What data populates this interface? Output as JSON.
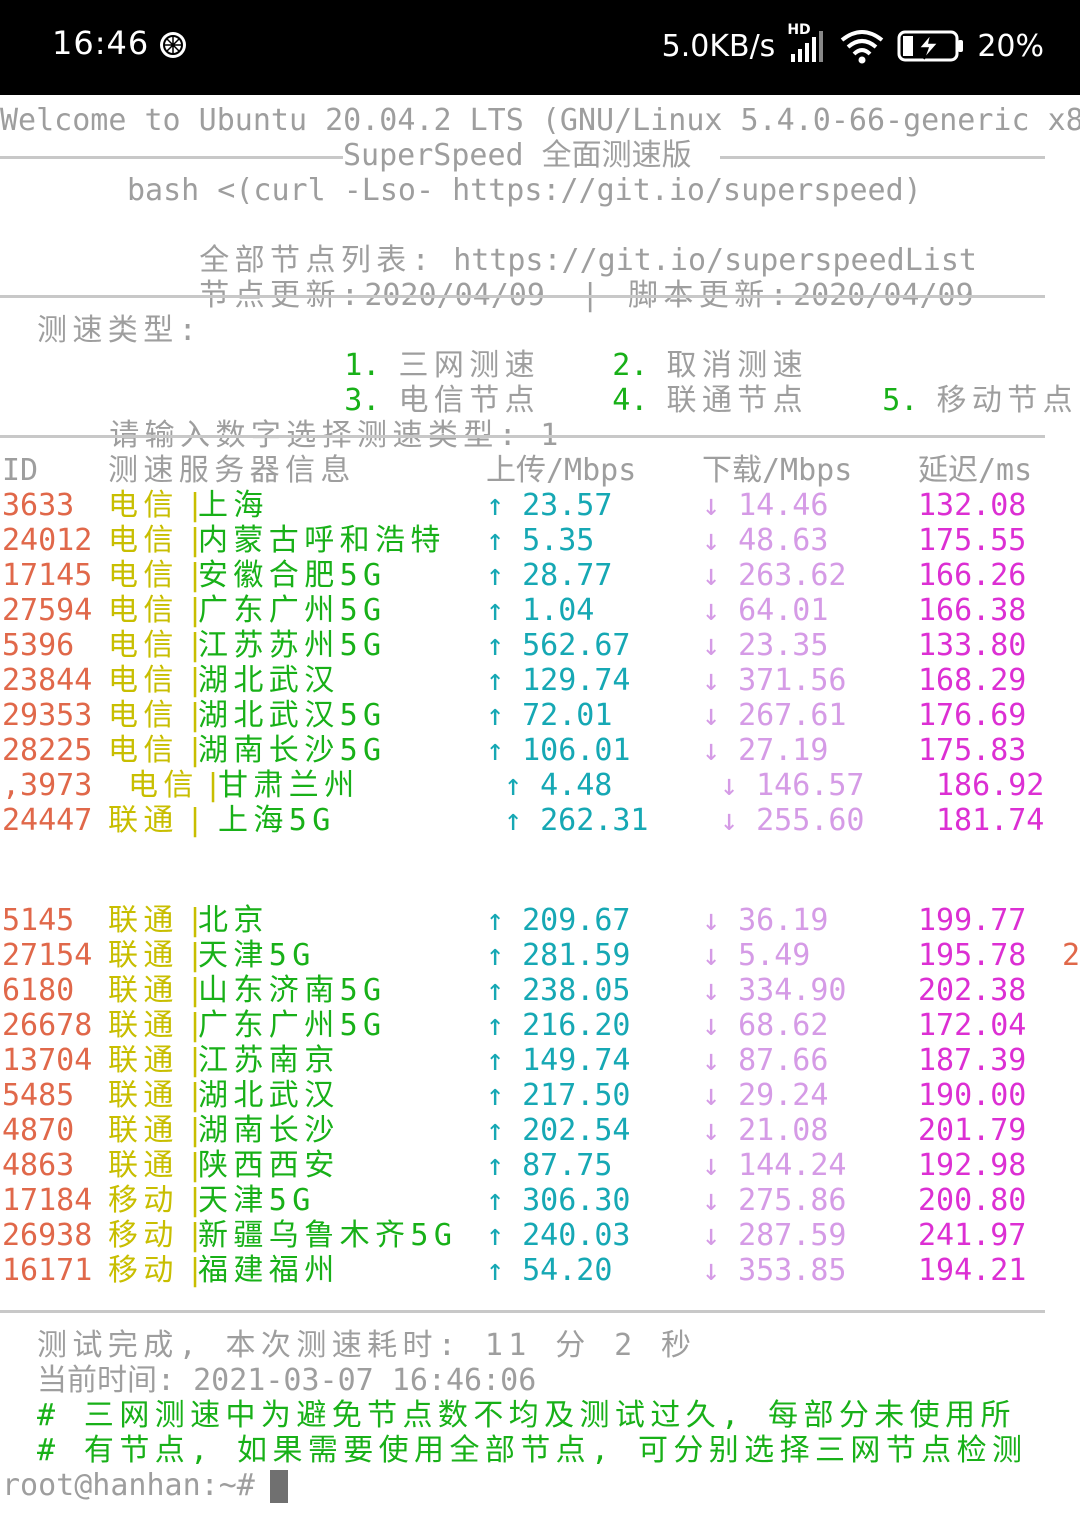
{
  "status_bar": {
    "time": "16:46",
    "network_speed": "5.0KB/s",
    "network_type": "HD",
    "battery": "20%",
    "icons": [
      "app-notification-icon",
      "signal-icon",
      "wifi-icon",
      "battery-charging-icon"
    ]
  },
  "terminal": {
    "welcome": "Welcome to Ubuntu 20.04.2 LTS (GNU/Linux 5.4.0-66-generic x8",
    "banner_title": "SuperSpeed 全面测速版",
    "cmd_line": "bash <(curl -Lso- https://git.io/superspeed)",
    "list_label": "全部节点列表:",
    "list_url": "https://git.io/superspeedList",
    "node_update_label": "节点更新:",
    "node_update": "2020/04/09",
    "script_update_label": "| 脚本更新:",
    "script_update": "2020/04/09",
    "menu_label": "测速类型:",
    "menu": [
      {
        "num": "1.",
        "label": "三网测速"
      },
      {
        "num": "2.",
        "label": "取消测速"
      },
      {
        "num": "3.",
        "label": "电信节点"
      },
      {
        "num": "4.",
        "label": "联通节点"
      },
      {
        "num": "5.",
        "label": "移动节点"
      }
    ],
    "prompt": "请输入数字选择测速类型:",
    "prompt_value": "1",
    "headers": {
      "id": "ID",
      "server": "测速服务器信息",
      "up": "上传/Mbps",
      "down": "下载/Mbps",
      "latency": "延迟/ms"
    },
    "rows_a": [
      {
        "id": "3633",
        "isp": "电信",
        "sep": "|",
        "loc": "上海",
        "up": "↑ 23.57",
        "down": "↓ 14.46",
        "lat": "132.08"
      },
      {
        "id": "24012",
        "isp": "电信",
        "sep": "|",
        "loc": "内蒙古呼和浩特",
        "up": "↑ 5.35",
        "down": "↓ 48.63",
        "lat": "175.55"
      },
      {
        "id": "17145",
        "isp": "电信",
        "sep": "|",
        "loc": "安徽合肥5G",
        "up": "↑ 28.77",
        "down": "↓ 263.62",
        "lat": "166.26"
      },
      {
        "id": "27594",
        "isp": "电信",
        "sep": "|",
        "loc": "广东广州5G",
        "up": "↑ 1.04",
        "down": "↓ 64.01",
        "lat": "166.38"
      },
      {
        "id": "5396",
        "isp": "电信",
        "sep": "|",
        "loc": "江苏苏州5G",
        "up": "↑ 562.67",
        "down": "↓ 23.35",
        "lat": "133.80"
      },
      {
        "id": "23844",
        "isp": "电信",
        "sep": "|",
        "loc": "湖北武汉",
        "up": "↑ 129.74",
        "down": "↓ 371.56",
        "lat": "168.29"
      },
      {
        "id": "29353",
        "isp": "电信",
        "sep": "|",
        "loc": "湖北武汉5G",
        "up": "↑ 72.01",
        "down": "↓ 267.61",
        "lat": "176.69"
      },
      {
        "id": "28225",
        "isp": "电信",
        "sep": "|",
        "loc": "湖南长沙5G",
        "up": "↑ 106.01",
        "down": "↓ 27.19",
        "lat": "175.83"
      }
    ],
    "row_shift_1": {
      "id": ",3973",
      "isp": "电信",
      "sep": "|",
      "loc": "甘肃兰州",
      "up": "↑ 4.48",
      "down": "↓ 146.57",
      "lat": "186.92"
    },
    "row_shift_2": {
      "id": "24447",
      "isp": "联通",
      "sep": "|",
      "loc": "上海5G",
      "up": "↑ 262.31",
      "down": "↓ 255.60",
      "lat": "181.74"
    },
    "rows_b": [
      {
        "id": "5145",
        "isp": "联通",
        "sep": "|",
        "loc": "北京",
        "up": "↑ 209.67",
        "down": "↓ 36.19",
        "lat": "199.77",
        "extra": ""
      },
      {
        "id": "27154",
        "isp": "联通",
        "sep": "|",
        "loc": "天津5G",
        "up": "↑ 281.59",
        "down": "↓ 5.49",
        "lat": "195.78",
        "extra": "2"
      },
      {
        "id": "6180",
        "isp": "联通",
        "sep": "|",
        "loc": "山东济南5G",
        "up": "↑ 238.05",
        "down": "↓ 334.90",
        "lat": "202.38",
        "extra": ""
      },
      {
        "id": "26678",
        "isp": "联通",
        "sep": "|",
        "loc": "广东广州5G",
        "up": "↑ 216.20",
        "down": "↓ 68.62",
        "lat": "172.04",
        "extra": ""
      },
      {
        "id": "13704",
        "isp": "联通",
        "sep": "|",
        "loc": "江苏南京",
        "up": "↑ 149.74",
        "down": "↓ 87.66",
        "lat": "187.39",
        "extra": ""
      },
      {
        "id": "5485",
        "isp": "联通",
        "sep": "|",
        "loc": "湖北武汉",
        "up": "↑ 217.50",
        "down": "↓ 29.24",
        "lat": "190.00",
        "extra": ""
      },
      {
        "id": "4870",
        "isp": "联通",
        "sep": "|",
        "loc": "湖南长沙",
        "up": "↑ 202.54",
        "down": "↓ 21.08",
        "lat": "201.79",
        "extra": ""
      },
      {
        "id": "4863",
        "isp": "联通",
        "sep": "|",
        "loc": "陕西西安",
        "up": "↑ 87.75",
        "down": "↓ 144.24",
        "lat": "192.98",
        "extra": ""
      },
      {
        "id": "17184",
        "isp": "移动",
        "sep": "|",
        "loc": "天津5G",
        "up": "↑ 306.30",
        "down": "↓ 275.86",
        "lat": "200.80",
        "extra": ""
      },
      {
        "id": "26938",
        "isp": "移动",
        "sep": "|",
        "loc": "新疆乌鲁木齐5G",
        "up": "↑ 240.03",
        "down": "↓ 287.59",
        "lat": "241.97",
        "extra": ""
      },
      {
        "id": "16171",
        "isp": "移动",
        "sep": "|",
        "loc": "福建福州",
        "up": "↑ 54.20",
        "down": "↓ 353.85",
        "lat": "194.21",
        "extra": ""
      }
    ],
    "done_line": "测试完成, 本次测速耗时: 11 分 2 秒",
    "time_line": "当前时间: 2021-03-07 16:46:06",
    "note1": "# 三网测速中为避免节点数不均及测试过久, 每部分未使用所",
    "note2": "# 有节点, 如果需要使用全部节点, 可分别选择三网节点检测",
    "shell_prompt": "root@hanhan:~#"
  }
}
